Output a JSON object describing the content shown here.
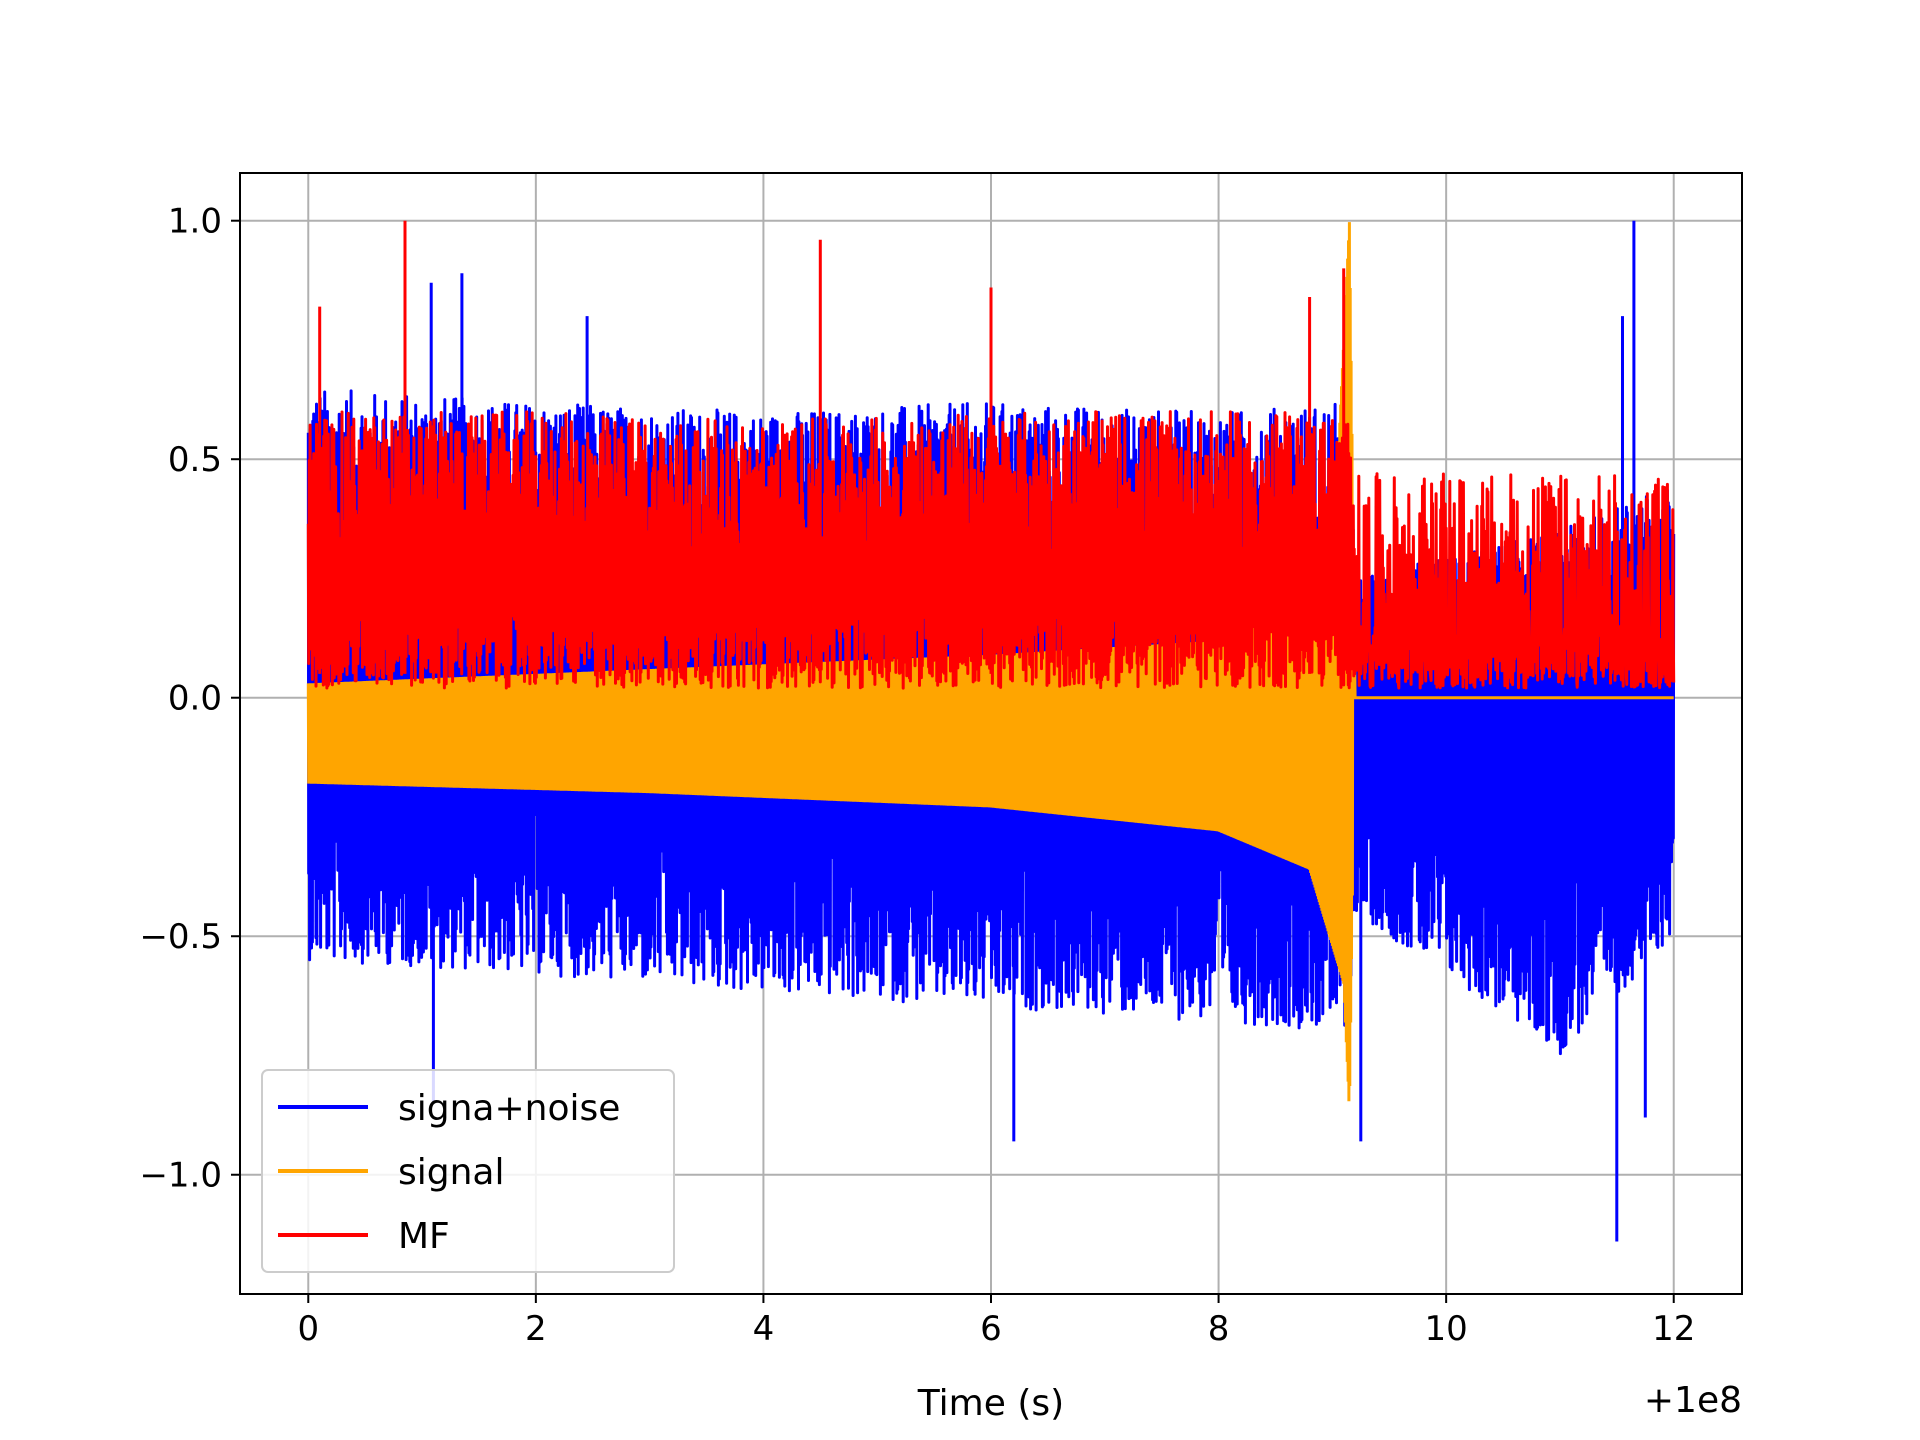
{
  "chart_data": {
    "type": "line",
    "title": "",
    "xlabel": "Time (s)",
    "ylabel": "",
    "x_offset_label": "+1e8",
    "xlim": [
      -0.6,
      12.6
    ],
    "ylim": [
      -1.25,
      1.1
    ],
    "xticks": [
      0,
      2,
      4,
      6,
      8,
      10,
      12
    ],
    "xtick_labels": [
      "0",
      "2",
      "4",
      "6",
      "8",
      "10",
      "12"
    ],
    "yticks": [
      -1.0,
      -0.5,
      0.0,
      0.5,
      1.0
    ],
    "ytick_labels": [
      "−1.0",
      "−0.5",
      "0.0",
      "0.5",
      "1.0"
    ],
    "grid": true,
    "legend_position": "lower-left",
    "series": [
      {
        "name": "signa+noise",
        "color": "#0000ff",
        "x_range": [
          0,
          12
        ],
        "envelope_upper": [
          [
            0,
            0.65
          ],
          [
            2,
            0.62
          ],
          [
            4,
            0.6
          ],
          [
            6,
            0.62
          ],
          [
            8,
            0.6
          ],
          [
            9.15,
            0.62
          ],
          [
            9.2,
            0.25
          ],
          [
            11,
            0.35
          ],
          [
            12,
            0.45
          ]
        ],
        "envelope_lower": [
          [
            0,
            -0.55
          ],
          [
            2,
            -0.58
          ],
          [
            4,
            -0.62
          ],
          [
            6,
            -0.65
          ],
          [
            8,
            -0.68
          ],
          [
            9.15,
            -0.7
          ],
          [
            9.2,
            -0.45
          ],
          [
            11,
            -0.75
          ],
          [
            12,
            -0.5
          ]
        ],
        "peaks": [
          [
            0.85,
            0.95
          ],
          [
            1.08,
            0.87
          ],
          [
            1.35,
            0.89
          ],
          [
            2.45,
            0.8
          ],
          [
            11.55,
            0.8
          ],
          [
            11.65,
            1.0
          ],
          [
            1.1,
            -0.85
          ],
          [
            6.2,
            -0.93
          ],
          [
            9.25,
            -0.93
          ],
          [
            11.5,
            -1.14
          ],
          [
            11.75,
            -0.88
          ]
        ]
      },
      {
        "name": "signal",
        "color": "#ffa500",
        "x_range": [
          0,
          12
        ],
        "chirp_end": 9.18,
        "envelope_upper": [
          [
            0,
            0.03
          ],
          [
            3,
            0.06
          ],
          [
            6,
            0.09
          ],
          [
            8,
            0.12
          ],
          [
            9.0,
            0.25
          ],
          [
            9.15,
            1.0
          ],
          [
            9.2,
            0.0
          ],
          [
            12,
            0.0
          ]
        ],
        "envelope_lower": [
          [
            0,
            -0.18
          ],
          [
            3,
            -0.2
          ],
          [
            6,
            -0.23
          ],
          [
            8,
            -0.28
          ],
          [
            8.8,
            -0.36
          ],
          [
            9.1,
            -0.6
          ],
          [
            9.15,
            -0.87
          ],
          [
            9.2,
            0.0
          ],
          [
            12,
            0.0
          ]
        ]
      },
      {
        "name": "MF",
        "color": "#ff0000",
        "x_range": [
          0,
          12
        ],
        "envelope_upper": [
          [
            0,
            0.6
          ],
          [
            2,
            0.6
          ],
          [
            4,
            0.58
          ],
          [
            6,
            0.6
          ],
          [
            8,
            0.6
          ],
          [
            9.15,
            0.6
          ],
          [
            9.2,
            0.55
          ],
          [
            12,
            0.55
          ]
        ],
        "envelope_lower": [
          [
            0,
            0.02
          ],
          [
            12,
            0.02
          ]
        ],
        "peaks": [
          [
            0.85,
            1.0
          ],
          [
            4.5,
            0.96
          ],
          [
            9.1,
            0.9
          ],
          [
            6.0,
            0.86
          ],
          [
            0.1,
            0.82
          ],
          [
            8.8,
            0.84
          ]
        ]
      }
    ]
  }
}
